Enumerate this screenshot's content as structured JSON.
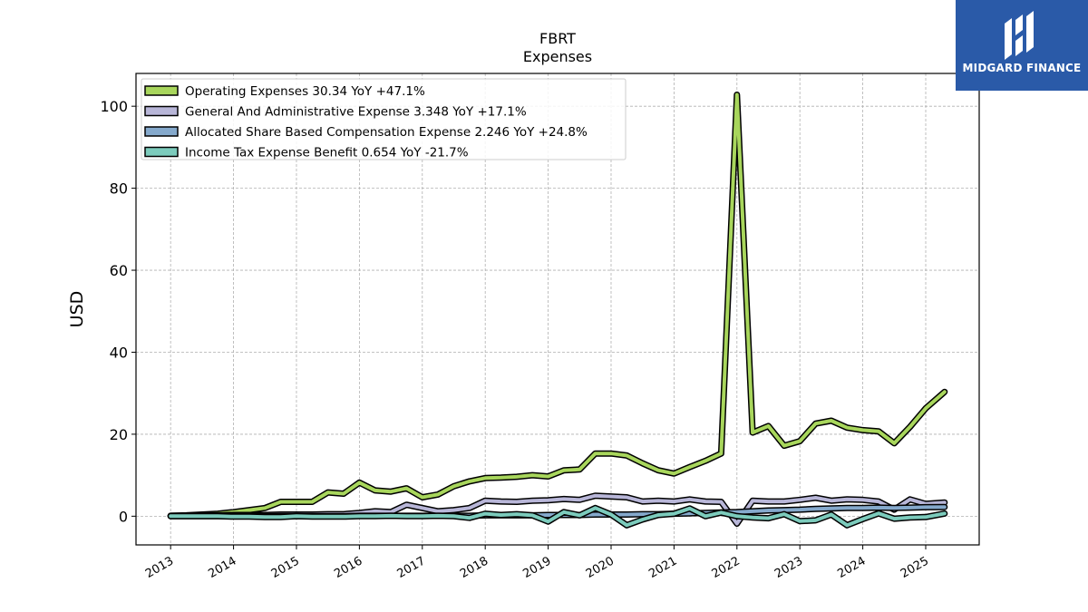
{
  "chart_data": {
    "type": "line",
    "title": "FBRT",
    "subtitle": "Expenses",
    "ylabel": "USD",
    "xlabel": "",
    "ylim": [
      -7,
      108
    ],
    "xlim": [
      2012.45,
      2025.85
    ],
    "yticks": [
      0,
      20,
      40,
      60,
      80,
      100
    ],
    "xticks": [
      "2013",
      "2014",
      "2015",
      "2016",
      "2017",
      "2018",
      "2019",
      "2020",
      "2021",
      "2022",
      "2023",
      "2024",
      "2025"
    ],
    "grid": true,
    "legend_position": "top-left",
    "series": [
      {
        "name": "Operating Expenses",
        "legend": "Operating Expenses  30.34 YoY +47.1%",
        "color": "#a8d65c",
        "x": [
          2013.0,
          2013.25,
          2013.5,
          2013.75,
          2014.0,
          2014.25,
          2014.5,
          2014.75,
          2015.0,
          2015.25,
          2015.5,
          2015.75,
          2016.0,
          2016.25,
          2016.5,
          2016.75,
          2017.0,
          2017.25,
          2017.5,
          2017.75,
          2018.0,
          2018.25,
          2018.5,
          2018.75,
          2019.0,
          2019.25,
          2019.5,
          2019.75,
          2020.0,
          2020.25,
          2020.5,
          2020.75,
          2021.0,
          2021.25,
          2021.5,
          2021.75,
          2022.0,
          2022.25,
          2022.5,
          2022.75,
          2023.0,
          2023.25,
          2023.5,
          2023.75,
          2024.0,
          2024.25,
          2024.5,
          2024.75,
          2025.0,
          2025.3
        ],
        "values": [
          0.1,
          0.2,
          0.4,
          0.6,
          1.0,
          1.5,
          2.0,
          3.5,
          3.5,
          3.5,
          5.8,
          5.5,
          8.2,
          6.3,
          6.0,
          6.8,
          4.6,
          5.3,
          7.3,
          8.5,
          9.3,
          9.4,
          9.6,
          10.0,
          9.7,
          11.2,
          11.4,
          15.3,
          15.3,
          14.8,
          12.9,
          11.2,
          10.4,
          12.0,
          13.5,
          15.3,
          102.8,
          20.4,
          22.0,
          17.2,
          18.3,
          22.6,
          23.3,
          21.6,
          21.0,
          20.7,
          17.8,
          21.8,
          26.3,
          30.34
        ]
      },
      {
        "name": "General And Administrative Expense",
        "legend": "General And Administrative Expense  3.348 YoY +17.1%",
        "color": "#b8b6d8",
        "x": [
          2013.0,
          2013.25,
          2013.5,
          2013.75,
          2014.0,
          2014.25,
          2014.5,
          2014.75,
          2015.0,
          2015.25,
          2015.5,
          2015.75,
          2016.0,
          2016.25,
          2016.5,
          2016.75,
          2017.0,
          2017.25,
          2017.5,
          2017.75,
          2018.0,
          2018.25,
          2018.5,
          2018.75,
          2019.0,
          2019.25,
          2019.5,
          2019.75,
          2020.0,
          2020.25,
          2020.5,
          2020.75,
          2021.0,
          2021.25,
          2021.5,
          2021.75,
          2022.0,
          2022.25,
          2022.5,
          2022.75,
          2023.0,
          2023.25,
          2023.5,
          2023.75,
          2024.0,
          2024.25,
          2024.5,
          2024.75,
          2025.0,
          2025.3
        ],
        "values": [
          0.1,
          0.1,
          0.2,
          0.2,
          0.3,
          0.3,
          0.3,
          0.4,
          0.4,
          0.4,
          0.5,
          0.5,
          0.8,
          1.2,
          1.0,
          2.8,
          2.0,
          1.2,
          1.5,
          2.0,
          3.8,
          3.6,
          3.5,
          3.8,
          3.9,
          4.2,
          4.0,
          5.0,
          4.8,
          4.6,
          3.6,
          3.8,
          3.6,
          4.1,
          3.6,
          3.5,
          -1.8,
          3.8,
          3.6,
          3.6,
          4.0,
          4.5,
          3.8,
          4.1,
          4.0,
          3.6,
          1.6,
          4.1,
          3.0,
          3.348
        ]
      },
      {
        "name": "Allocated Share Based Compensation Expense",
        "legend": "Allocated Share Based Compensation Expense  2.246 YoY +24.8%",
        "color": "#85a9cc",
        "x": [
          2013.0,
          2013.25,
          2013.5,
          2013.75,
          2014.0,
          2014.25,
          2014.5,
          2014.75,
          2015.0,
          2015.25,
          2015.5,
          2015.75,
          2016.0,
          2016.25,
          2016.5,
          2016.75,
          2017.0,
          2017.25,
          2017.5,
          2017.75,
          2018.0,
          2018.25,
          2018.5,
          2018.75,
          2019.0,
          2019.25,
          2019.5,
          2019.75,
          2020.0,
          2020.25,
          2020.5,
          2020.75,
          2021.0,
          2021.25,
          2021.5,
          2021.75,
          2022.0,
          2022.25,
          2022.5,
          2022.75,
          2023.0,
          2023.25,
          2023.5,
          2023.75,
          2024.0,
          2024.25,
          2024.5,
          2024.75,
          2025.0,
          2025.3
        ],
        "values": [
          0.0,
          0.0,
          0.0,
          0.0,
          0.0,
          0.0,
          0.0,
          0.0,
          0.0,
          0.0,
          0.0,
          0.0,
          0.1,
          0.1,
          0.1,
          0.1,
          0.1,
          0.1,
          0.1,
          0.1,
          0.2,
          0.2,
          0.2,
          0.2,
          0.3,
          0.3,
          0.3,
          0.4,
          0.4,
          0.4,
          0.5,
          0.5,
          0.6,
          0.7,
          0.8,
          0.9,
          1.0,
          1.2,
          1.4,
          1.5,
          1.6,
          1.8,
          1.9,
          2.0,
          2.0,
          2.1,
          2.0,
          2.1,
          2.2,
          2.246
        ]
      },
      {
        "name": "Income Tax Expense Benefit",
        "legend": "Income Tax Expense Benefit  0.654 YoY -21.7%",
        "color": "#7ccbbc",
        "x": [
          2013.0,
          2013.25,
          2013.5,
          2013.75,
          2014.0,
          2014.25,
          2014.5,
          2014.75,
          2015.0,
          2015.25,
          2015.5,
          2015.75,
          2016.0,
          2016.25,
          2016.5,
          2016.75,
          2017.0,
          2017.25,
          2017.5,
          2017.75,
          2018.0,
          2018.25,
          2018.5,
          2018.75,
          2019.0,
          2019.25,
          2019.5,
          2019.75,
          2020.0,
          2020.25,
          2020.5,
          2020.75,
          2021.0,
          2021.25,
          2021.5,
          2021.75,
          2022.0,
          2022.25,
          2022.5,
          2022.75,
          2023.0,
          2023.25,
          2023.5,
          2023.75,
          2024.0,
          2024.25,
          2024.5,
          2024.75,
          2025.0,
          2025.3
        ],
        "values": [
          0.0,
          0.0,
          0.0,
          0.0,
          -0.1,
          -0.1,
          -0.2,
          -0.2,
          0.0,
          -0.1,
          -0.1,
          -0.1,
          0.0,
          0.0,
          0.1,
          0.0,
          0.0,
          0.1,
          0.0,
          -0.4,
          0.6,
          0.3,
          0.5,
          0.2,
          -1.3,
          1.0,
          0.2,
          2.0,
          0.4,
          -2.2,
          -0.8,
          0.3,
          0.6,
          1.9,
          0.0,
          0.9,
          0.0,
          -0.3,
          -0.5,
          0.5,
          -1.2,
          -1.0,
          0.4,
          -2.2,
          -0.7,
          0.7,
          -0.6,
          -0.3,
          -0.2,
          0.654
        ]
      }
    ]
  },
  "logo": {
    "brand": "MIDGARD FINANCE"
  }
}
